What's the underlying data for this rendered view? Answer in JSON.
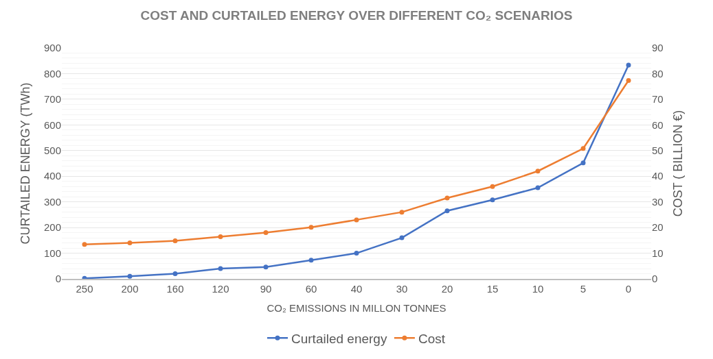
{
  "chart_data": {
    "type": "line",
    "title": "COST AND CURTAILED ENERGY OVER DIFFERENT CO₂ SCENARIOS",
    "xlabel": "CO₂ EMISSIONS IN MILLON TONNES",
    "ylabel": "CURTAILED ENERGY (TWh)",
    "y2label": "COST ( BILLION €)",
    "categories": [
      "250",
      "200",
      "160",
      "120",
      "90",
      "60",
      "40",
      "30",
      "20",
      "15",
      "10",
      "5",
      "0"
    ],
    "series": [
      {
        "name": "Curtailed energy",
        "color": "#4472c4",
        "values": [
          2,
          10,
          20,
          40,
          46,
          73,
          100,
          160,
          265,
          308,
          355,
          452,
          833
        ]
      },
      {
        "name": "Cost",
        "color": "#ed7d31",
        "axis": "y2",
        "values": [
          13.4,
          14.0,
          14.8,
          16.4,
          18.0,
          20.1,
          23.0,
          26.0,
          31.5,
          36.0,
          42.0,
          50.8,
          77.3
        ]
      }
    ],
    "ylim": [
      0,
      900
    ],
    "yticks": [
      0,
      100,
      200,
      300,
      400,
      500,
      600,
      700,
      800,
      900
    ],
    "y2lim": [
      0,
      90
    ],
    "y2ticks": [
      0,
      10,
      20,
      30,
      40,
      50,
      60,
      70,
      80,
      90
    ],
    "grid": "y",
    "legend": "bottom",
    "marker": "circle",
    "line_style": "solid"
  }
}
